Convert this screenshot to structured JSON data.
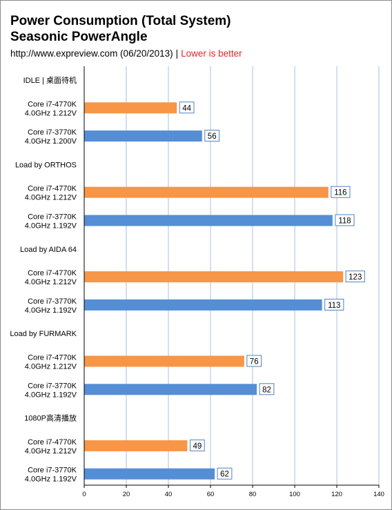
{
  "header": {
    "title_line1": "Power Consumption (Total System)",
    "title_line2": "Seasonic PowerAngle",
    "source": "http://www.expreview.com (06/20/2013)",
    "separator": "|",
    "note": "Lower is better"
  },
  "colors": {
    "orange": "#f79646",
    "blue": "#558ed5",
    "grid": "#a9bfdc",
    "axis": "#000000",
    "note_red": "#e8242a"
  },
  "chart_data": {
    "type": "bar",
    "orientation": "horizontal",
    "xlim": [
      0,
      140
    ],
    "xticks": [
      0,
      20,
      40,
      60,
      80,
      100,
      120,
      140
    ],
    "grid": true,
    "groups": [
      {
        "label": "IDLE | 桌面待机",
        "bars": [
          {
            "label": [
              "Core i7-4770K",
              "4.0GHz 1.212V"
            ],
            "value": 44,
            "color": "orange"
          },
          {
            "label": [
              "Core i7-3770K",
              "4.0GHz 1.200V"
            ],
            "value": 56,
            "color": "blue"
          }
        ]
      },
      {
        "label": "Load by ORTHOS",
        "bars": [
          {
            "label": [
              "Core i7-4770K",
              "4.0GHz 1.212V"
            ],
            "value": 116,
            "color": "orange"
          },
          {
            "label": [
              "Core i7-3770K",
              "4.0GHz 1.192V"
            ],
            "value": 118,
            "color": "blue"
          }
        ]
      },
      {
        "label": "Load by AIDA 64",
        "bars": [
          {
            "label": [
              "Core i7-4770K",
              "4.0GHz 1.212V"
            ],
            "value": 123,
            "color": "orange"
          },
          {
            "label": [
              "Core i7-3770K",
              "4.0GHz 1.192V"
            ],
            "value": 113,
            "color": "blue"
          }
        ]
      },
      {
        "label": "Load by FURMARK",
        "bars": [
          {
            "label": [
              "Core i7-4770K",
              "4.0GHz 1.212V"
            ],
            "value": 76,
            "color": "orange"
          },
          {
            "label": [
              "Core i7-3770K",
              "4.0GHz 1.192V"
            ],
            "value": 82,
            "color": "blue"
          }
        ]
      },
      {
        "label": "1080P高清播放",
        "bars": [
          {
            "label": [
              "Core i7-4770K",
              "4.0GHz 1.212V"
            ],
            "value": 49,
            "color": "orange"
          },
          {
            "label": [
              "Core i7-3770K",
              "4.0GHz 1.192V"
            ],
            "value": 62,
            "color": "blue"
          }
        ]
      }
    ]
  }
}
